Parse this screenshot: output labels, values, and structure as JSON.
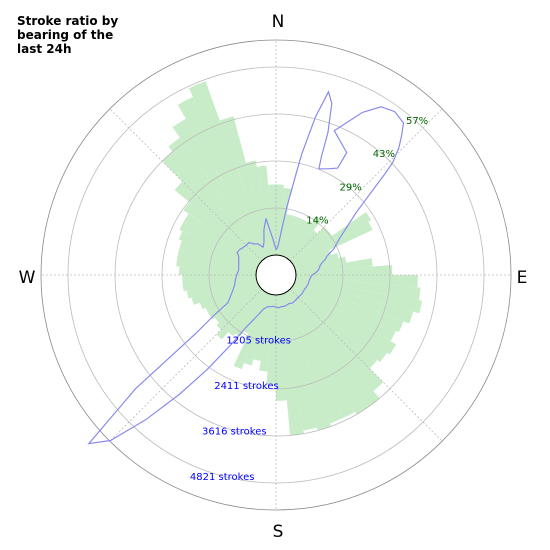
{
  "chart_data": {
    "type": "polar",
    "title_lines": [
      "Stroke ratio by",
      "bearing of the",
      "last 24h"
    ],
    "directions": [
      "N",
      "E",
      "S",
      "W"
    ],
    "ratio_labels": [
      "14%",
      "29%",
      "43%",
      "57%"
    ],
    "stroke_labels": [
      "1205 strokes",
      "2411 strokes",
      "3616 strokes",
      "4821 strokes"
    ],
    "colors": {
      "ratio_fill": "#c8ecc8",
      "stroke_line": "#8a8aee",
      "ratio_label": "#006400",
      "stroke_label": "#0000ff",
      "grid": "#bbbbbb",
      "frame": "#888888"
    },
    "series": [
      {
        "name": "",
        "kind": "bars",
        "r_unit": "percent",
        "theta_step_deg": 5,
        "r": [
          12,
          13,
          12,
          10,
          6,
          8,
          13,
          16,
          9,
          12,
          15,
          13,
          10,
          12,
          9,
          6,
          8,
          9,
          7,
          5,
          5,
          4,
          4,
          5,
          4,
          4,
          3,
          4,
          3,
          4,
          4,
          4,
          5,
          6,
          4,
          3,
          4,
          5,
          6,
          6,
          6,
          7,
          4,
          5,
          3,
          4,
          4,
          2,
          3,
          3,
          3,
          2,
          2,
          2,
          3,
          2,
          2,
          4,
          5,
          5,
          4,
          3,
          2,
          3,
          5,
          7,
          7,
          6,
          5,
          4,
          5,
          6,
          5,
          6,
          8,
          10,
          9,
          8,
          11,
          10,
          8,
          10,
          14,
          28,
          27,
          10,
          6,
          5,
          8,
          7,
          6,
          4,
          6,
          10,
          9,
          5,
          5,
          14,
          4,
          4,
          3,
          4,
          6,
          4,
          5,
          16,
          10,
          8,
          15,
          11,
          21,
          23,
          25,
          13,
          16,
          16,
          20,
          17,
          10,
          11,
          10,
          12,
          12,
          11,
          11,
          12,
          13,
          12,
          14,
          14,
          14,
          14,
          14,
          14,
          15,
          20,
          21,
          20,
          18,
          19,
          20,
          18,
          17,
          16,
          15,
          13,
          7,
          12,
          8,
          4,
          6,
          7,
          8,
          15,
          15,
          10,
          11,
          12,
          10,
          16,
          24,
          30,
          38,
          39,
          40,
          38,
          36,
          35,
          37,
          36,
          35,
          39,
          44,
          40,
          31,
          20,
          22,
          35,
          36,
          30,
          8,
          13,
          9,
          8,
          7,
          11,
          10,
          14,
          14,
          15,
          17,
          18,
          18,
          18,
          19,
          20,
          19,
          21,
          23,
          21,
          20,
          23,
          22,
          20,
          18,
          18,
          16,
          8,
          20,
          18,
          11,
          12,
          13,
          15,
          12,
          16,
          13,
          13,
          13,
          13,
          13,
          12,
          12,
          11,
          12,
          11,
          12,
          13,
          12,
          12,
          14,
          14,
          13,
          13,
          15,
          15,
          16,
          17,
          19,
          20,
          22,
          26,
          34,
          41,
          43,
          44,
          43,
          43,
          44,
          43,
          44,
          33,
          28,
          24,
          19,
          17,
          17,
          14,
          16,
          17,
          16,
          18,
          15,
          17,
          17,
          19,
          21,
          22,
          23,
          23,
          24,
          25,
          25,
          25,
          26,
          27,
          27,
          29,
          35,
          44,
          46,
          50,
          55,
          58,
          45,
          30,
          28,
          22,
          22,
          21,
          11,
          8,
          8,
          13
        ]
      },
      {
        "name": "",
        "kind": "line",
        "r_unit": "strokes",
        "theta_deg": [
          0,
          3,
          5,
          7,
          9,
          11,
          12,
          14,
          16,
          18,
          20,
          21,
          22,
          26,
          30,
          30,
          22,
          28,
          32,
          36,
          40,
          42,
          44,
          46,
          47,
          52,
          60,
          66,
          68,
          70,
          72,
          74,
          76,
          78,
          80,
          82,
          84,
          86,
          88,
          90,
          93,
          96,
          100,
          105,
          110,
          115,
          120,
          125,
          130,
          135,
          140,
          145,
          150,
          155,
          160,
          165,
          170,
          175,
          180,
          185,
          190,
          195,
          200,
          205,
          210,
          213,
          216,
          219,
          222,
          225,
          228,
          231,
          234,
          237,
          240,
          243,
          246,
          249,
          252,
          255,
          258,
          261,
          264,
          267,
          270,
          273,
          276,
          279,
          282,
          285,
          288,
          291,
          294,
          297,
          300,
          305,
          310,
          315,
          320,
          325,
          330,
          335,
          340,
          345,
          350,
          355,
          360
        ],
        "r": [
          150,
          200,
          360,
          700,
          1350,
          2200,
          2900,
          4000,
          4780,
          4500,
          3700,
          3000,
          2650,
          2750,
          2900,
          3400,
          3800,
          4600,
          5000,
          5100,
          5000,
          4700,
          4400,
          4000,
          3650,
          2300,
          1500,
          1200,
          1050,
          950,
          900,
          820,
          750,
          700,
          680,
          650,
          620,
          570,
          520,
          450,
          420,
          400,
          380,
          380,
          360,
          340,
          330,
          340,
          330,
          320,
          330,
          340,
          350,
          320,
          330,
          350,
          340,
          360,
          340,
          320,
          340,
          360,
          450,
          720,
          1150,
          1800,
          2700,
          3750,
          4900,
          6000,
          6500,
          4500,
          2200,
          1500,
          1000,
          900,
          820,
          750,
          700,
          650,
          620,
          600,
          580,
          560,
          540,
          520,
          500,
          500,
          510,
          520,
          540,
          560,
          580,
          620,
          700,
          680,
          640,
          620,
          620,
          500,
          450,
          300,
          420,
          750,
          1050,
          450,
          150
        ]
      }
    ]
  }
}
